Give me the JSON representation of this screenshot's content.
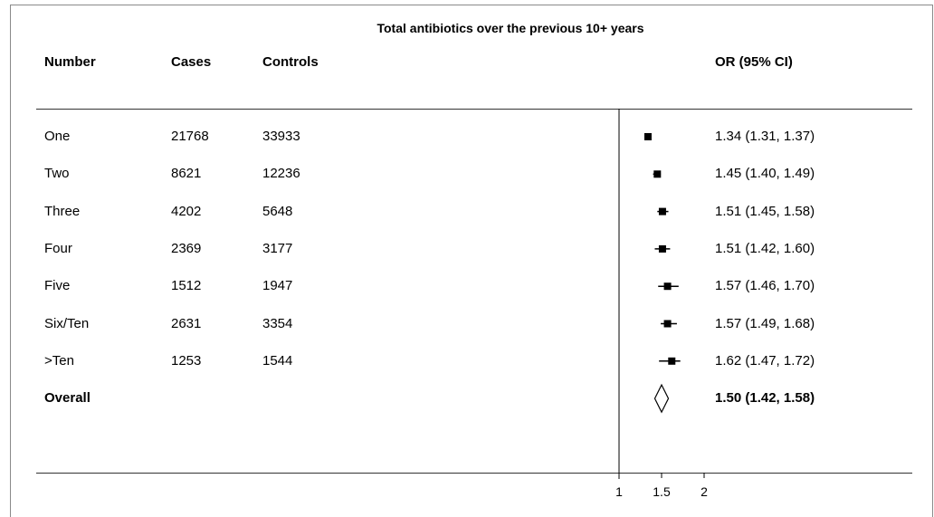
{
  "chart_data": {
    "type": "forest",
    "title": "Total antibiotics over the previous 10+ years",
    "columns": [
      "Number",
      "Cases",
      "Controls",
      "OR (95% CI)"
    ],
    "rows": [
      {
        "label": "One",
        "cases": "21768",
        "controls": "33933",
        "or": 1.34,
        "lo": 1.31,
        "hi": 1.37,
        "text": "1.34 (1.31, 1.37)"
      },
      {
        "label": "Two",
        "cases": "8621",
        "controls": "12236",
        "or": 1.45,
        "lo": 1.4,
        "hi": 1.49,
        "text": "1.45 (1.40, 1.49)"
      },
      {
        "label": "Three",
        "cases": "4202",
        "controls": "5648",
        "or": 1.51,
        "lo": 1.45,
        "hi": 1.58,
        "text": "1.51 (1.45, 1.58)"
      },
      {
        "label": "Four",
        "cases": "2369",
        "controls": "3177",
        "or": 1.51,
        "lo": 1.42,
        "hi": 1.6,
        "text": "1.51 (1.42, 1.60)"
      },
      {
        "label": "Five",
        "cases": "1512",
        "controls": "1947",
        "or": 1.57,
        "lo": 1.46,
        "hi": 1.7,
        "text": "1.57 (1.46, 1.70)"
      },
      {
        "label": "Six/Ten",
        "cases": "2631",
        "controls": "3354",
        "or": 1.57,
        "lo": 1.49,
        "hi": 1.68,
        "text": "1.57 (1.49, 1.68)"
      },
      {
        "label": ">Ten",
        "cases": "1253",
        "controls": "1544",
        "or": 1.62,
        "lo": 1.47,
        "hi": 1.72,
        "text": "1.62 (1.47, 1.72)"
      }
    ],
    "overall": {
      "label": "Overall",
      "or": 1.5,
      "lo": 1.42,
      "hi": 1.58,
      "text": "1.50 (1.42, 1.58)"
    },
    "x_ticks": [
      1,
      1.5,
      2
    ],
    "x_tick_labels": [
      "1",
      "1.5",
      "2"
    ],
    "reference_line": 1
  }
}
